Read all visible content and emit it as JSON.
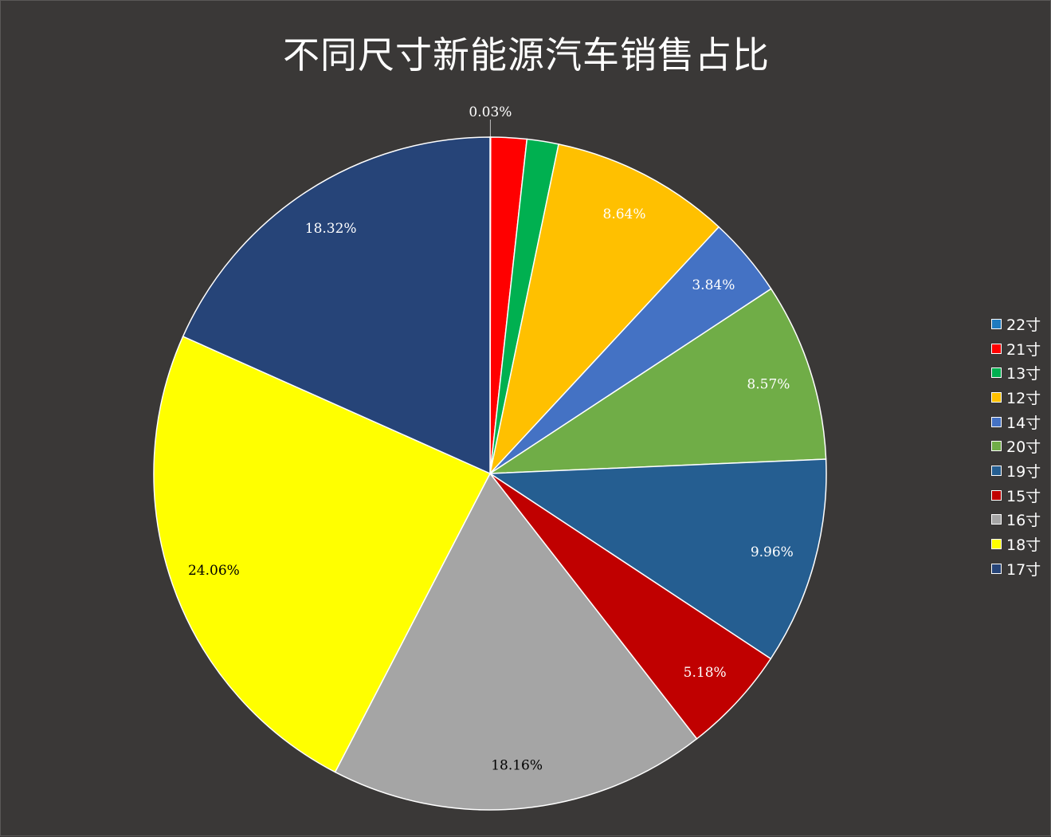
{
  "chart_data": {
    "type": "pie",
    "title": "不同尺寸新能源汽车销售占比",
    "slices": [
      {
        "name": "22寸",
        "value": 0.03,
        "label": "0.03%",
        "color": "#1f7bc0",
        "label_color": "#ffffff"
      },
      {
        "name": "21寸",
        "value": 1.72,
        "label": "",
        "color": "#ff0000",
        "label_color": "#ffffff"
      },
      {
        "name": "13寸",
        "value": 1.52,
        "label": "",
        "color": "#00b050",
        "label_color": "#ffffff"
      },
      {
        "name": "12寸",
        "value": 8.64,
        "label": "8.64%",
        "color": "#ffc000",
        "label_color": "#ffffff"
      },
      {
        "name": "14寸",
        "value": 3.84,
        "label": "3.84%",
        "color": "#4472c4",
        "label_color": "#ffffff"
      },
      {
        "name": "20寸",
        "value": 8.57,
        "label": "8.57%",
        "color": "#70ad47",
        "label_color": "#ffffff"
      },
      {
        "name": "19寸",
        "value": 9.96,
        "label": "9.96%",
        "color": "#255e91",
        "label_color": "#ffffff"
      },
      {
        "name": "15寸",
        "value": 5.18,
        "label": "5.18%",
        "color": "#c00000",
        "label_color": "#ffffff"
      },
      {
        "name": "16寸",
        "value": 18.16,
        "label": "18.16%",
        "color": "#a5a5a5",
        "label_color": "#000000"
      },
      {
        "name": "18寸",
        "value": 24.06,
        "label": "24.06%",
        "color": "#ffff00",
        "label_color": "#000000"
      },
      {
        "name": "17寸",
        "value": 18.32,
        "label": "18.32%",
        "color": "#264478",
        "label_color": "#ffffff"
      }
    ],
    "legend_position": "right",
    "background": "#3a3837"
  }
}
